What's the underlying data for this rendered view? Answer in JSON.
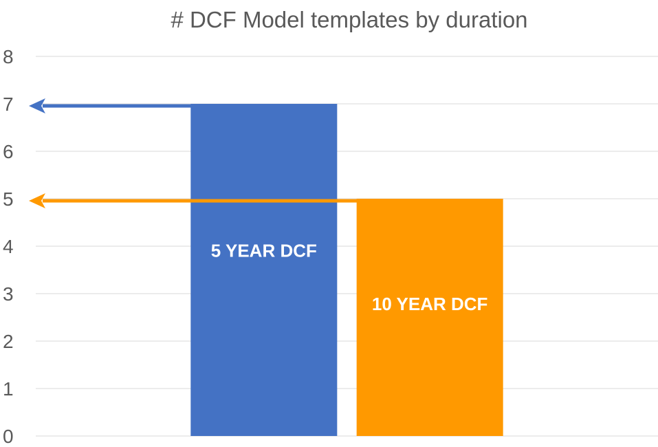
{
  "chart_data": {
    "type": "bar",
    "title": "# DCF Model templates by duration",
    "xlabel": "",
    "ylabel": "",
    "ylim": [
      0,
      8
    ],
    "yticks": [
      "0",
      "1",
      "2",
      "3",
      "4",
      "5",
      "6",
      "7",
      "8"
    ],
    "grid": true,
    "legend": "none",
    "categories": [
      "5 YEAR DCF",
      "10 YEAR DCF"
    ],
    "values": [
      7,
      5
    ],
    "colors": [
      "#4472c4",
      "#ff9900"
    ],
    "annotations": [
      {
        "type": "arrow",
        "target_value": 7,
        "color": "#4472c4"
      },
      {
        "type": "arrow",
        "target_value": 5,
        "color": "#ff9900"
      }
    ]
  }
}
